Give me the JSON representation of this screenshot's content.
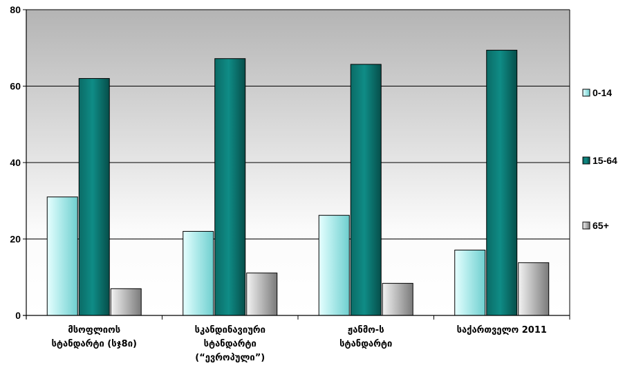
{
  "chart_data": {
    "type": "bar",
    "categories": [
      [
        "მსოფლიოს",
        "სტანდარტი (სჯ8ი)"
      ],
      [
        "სკანდინავიური",
        "სტანდარტი",
        "(“ევროპული”)"
      ],
      [
        "ჟანმო-ს",
        "სტანდარტი"
      ],
      [
        "საქართველო 2011"
      ]
    ],
    "series": [
      {
        "name": "0-14",
        "values": [
          31,
          22,
          26.2,
          17.1
        ]
      },
      {
        "name": "15-64",
        "values": [
          62,
          67.2,
          65.7,
          69.4
        ]
      },
      {
        "name": "65+",
        "values": [
          7,
          11.1,
          8.4,
          13.8
        ]
      }
    ],
    "ylim": [
      0,
      80
    ],
    "yticks": [
      0,
      20,
      40,
      60,
      80
    ],
    "grid": true,
    "legend_position": "right",
    "colors": {
      "0-14": [
        "#e6ffff",
        "#aeeaea",
        "#6fcfcf"
      ],
      "15-64": [
        "#0b6b66",
        "#0f8c86",
        "#064e4a"
      ],
      "65+": [
        "#f3f3f3",
        "#bdbdbd",
        "#7a7a7a"
      ]
    },
    "title": "",
    "xlabel": "",
    "ylabel": ""
  }
}
